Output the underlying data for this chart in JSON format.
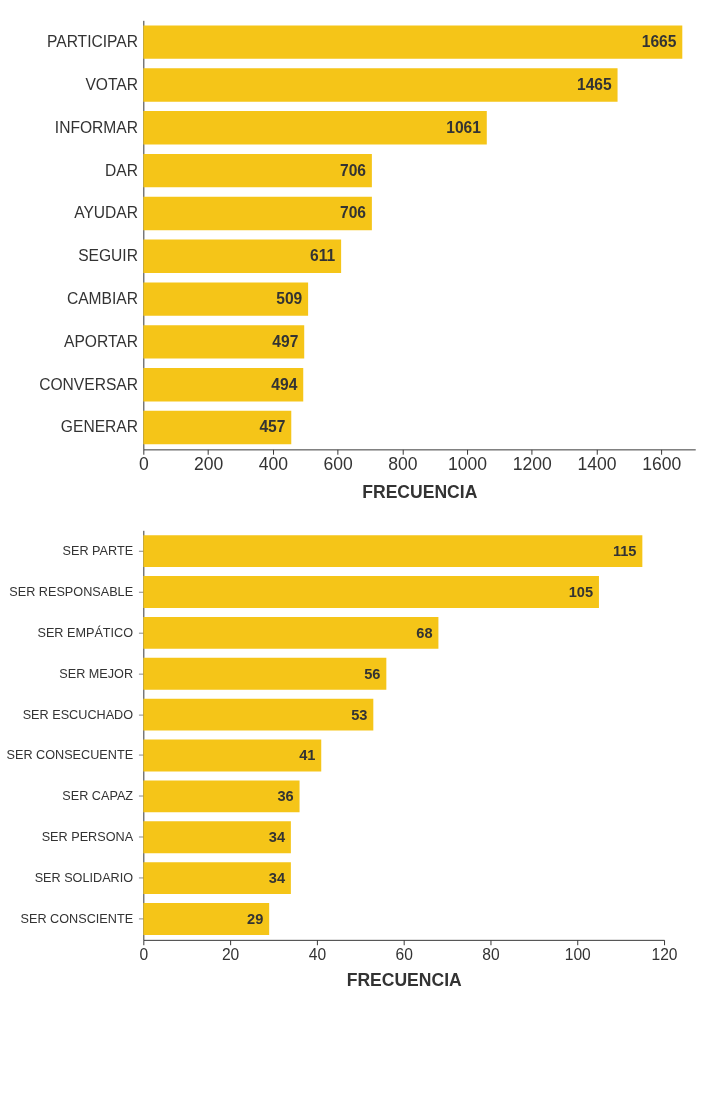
{
  "chart_data": [
    {
      "type": "bar",
      "orientation": "horizontal",
      "xlabel": "FRECUENCIA",
      "categories": [
        "PARTICIPAR",
        "VOTAR",
        "INFORMAR",
        "DAR",
        "AYUDAR",
        "SEGUIR",
        "CAMBIAR",
        "APORTAR",
        "CONVERSAR",
        "GENERAR"
      ],
      "values": [
        1665,
        1465,
        1061,
        706,
        706,
        611,
        509,
        497,
        494,
        457
      ],
      "color": "#f5c518",
      "data_labels": true,
      "xlim": [
        0,
        1705
      ],
      "xticks": [
        0,
        200,
        400,
        600,
        800,
        1000,
        1200,
        1400,
        1600
      ],
      "grid": false
    },
    {
      "type": "bar",
      "orientation": "horizontal",
      "xlabel": "FRECUENCIA",
      "categories": [
        "SER PARTE",
        "SER RESPONSABLE",
        "SER EMPÁTICO",
        "SER MEJOR",
        "SER ESCUCHADO",
        "SER CONSECUENTE",
        "SER CAPAZ",
        "SER PERSONA",
        "SER SOLIDARIO",
        "SER CONSCIENTE"
      ],
      "values": [
        115,
        105,
        68,
        56,
        53,
        41,
        36,
        34,
        34,
        29
      ],
      "color": "#f5c518",
      "data_labels": true,
      "xlim": [
        0,
        120
      ],
      "xticks": [
        0,
        20,
        40,
        60,
        80,
        100,
        120
      ],
      "grid": false
    }
  ]
}
